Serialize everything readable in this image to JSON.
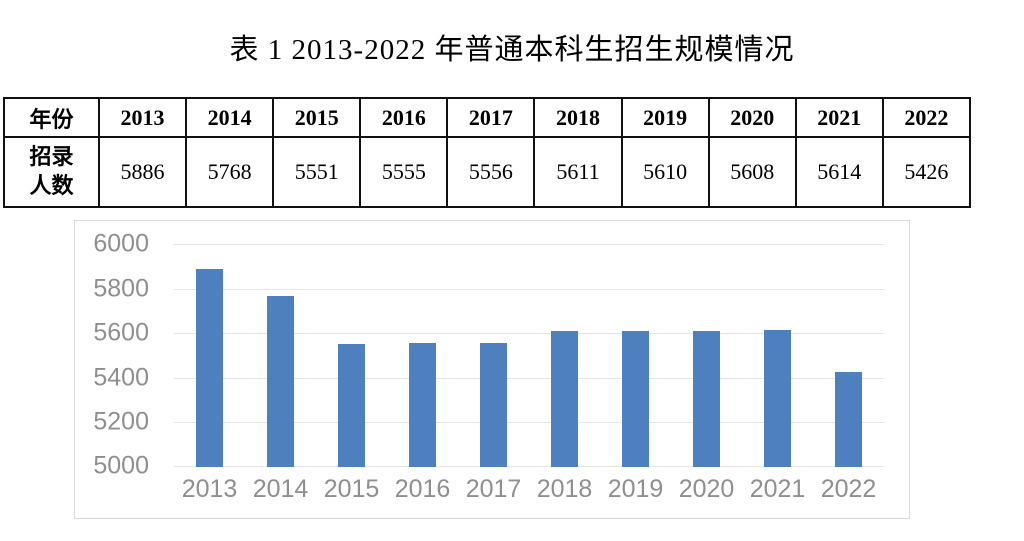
{
  "page": {
    "title": "表 1  2013-2022 年普通本科生招生规模情况"
  },
  "table": {
    "year_header": "年份",
    "value_header": "招录\n人数",
    "years": [
      "2013",
      "2014",
      "2015",
      "2016",
      "2017",
      "2018",
      "2019",
      "2020",
      "2021",
      "2022"
    ],
    "values": [
      "5886",
      "5768",
      "5551",
      "5555",
      "5556",
      "5611",
      "5610",
      "5608",
      "5614",
      "5426"
    ]
  },
  "chart_data": {
    "type": "bar",
    "categories": [
      "2013",
      "2014",
      "2015",
      "2016",
      "2017",
      "2018",
      "2019",
      "2020",
      "2021",
      "2022"
    ],
    "values": [
      5886,
      5768,
      5551,
      5555,
      5556,
      5611,
      5610,
      5608,
      5614,
      5426
    ],
    "title": "",
    "xlabel": "",
    "ylabel": "",
    "ylim": [
      5000,
      6000
    ],
    "yticks": [
      5000,
      5200,
      5400,
      5600,
      5800,
      6000
    ],
    "grid": true,
    "legend": false,
    "bar_color": "#4e7fbf",
    "axis_label_color": "#8f8f8f",
    "gridline_color": "#e4e4e4",
    "chart_border_color": "#d9d9d9"
  }
}
